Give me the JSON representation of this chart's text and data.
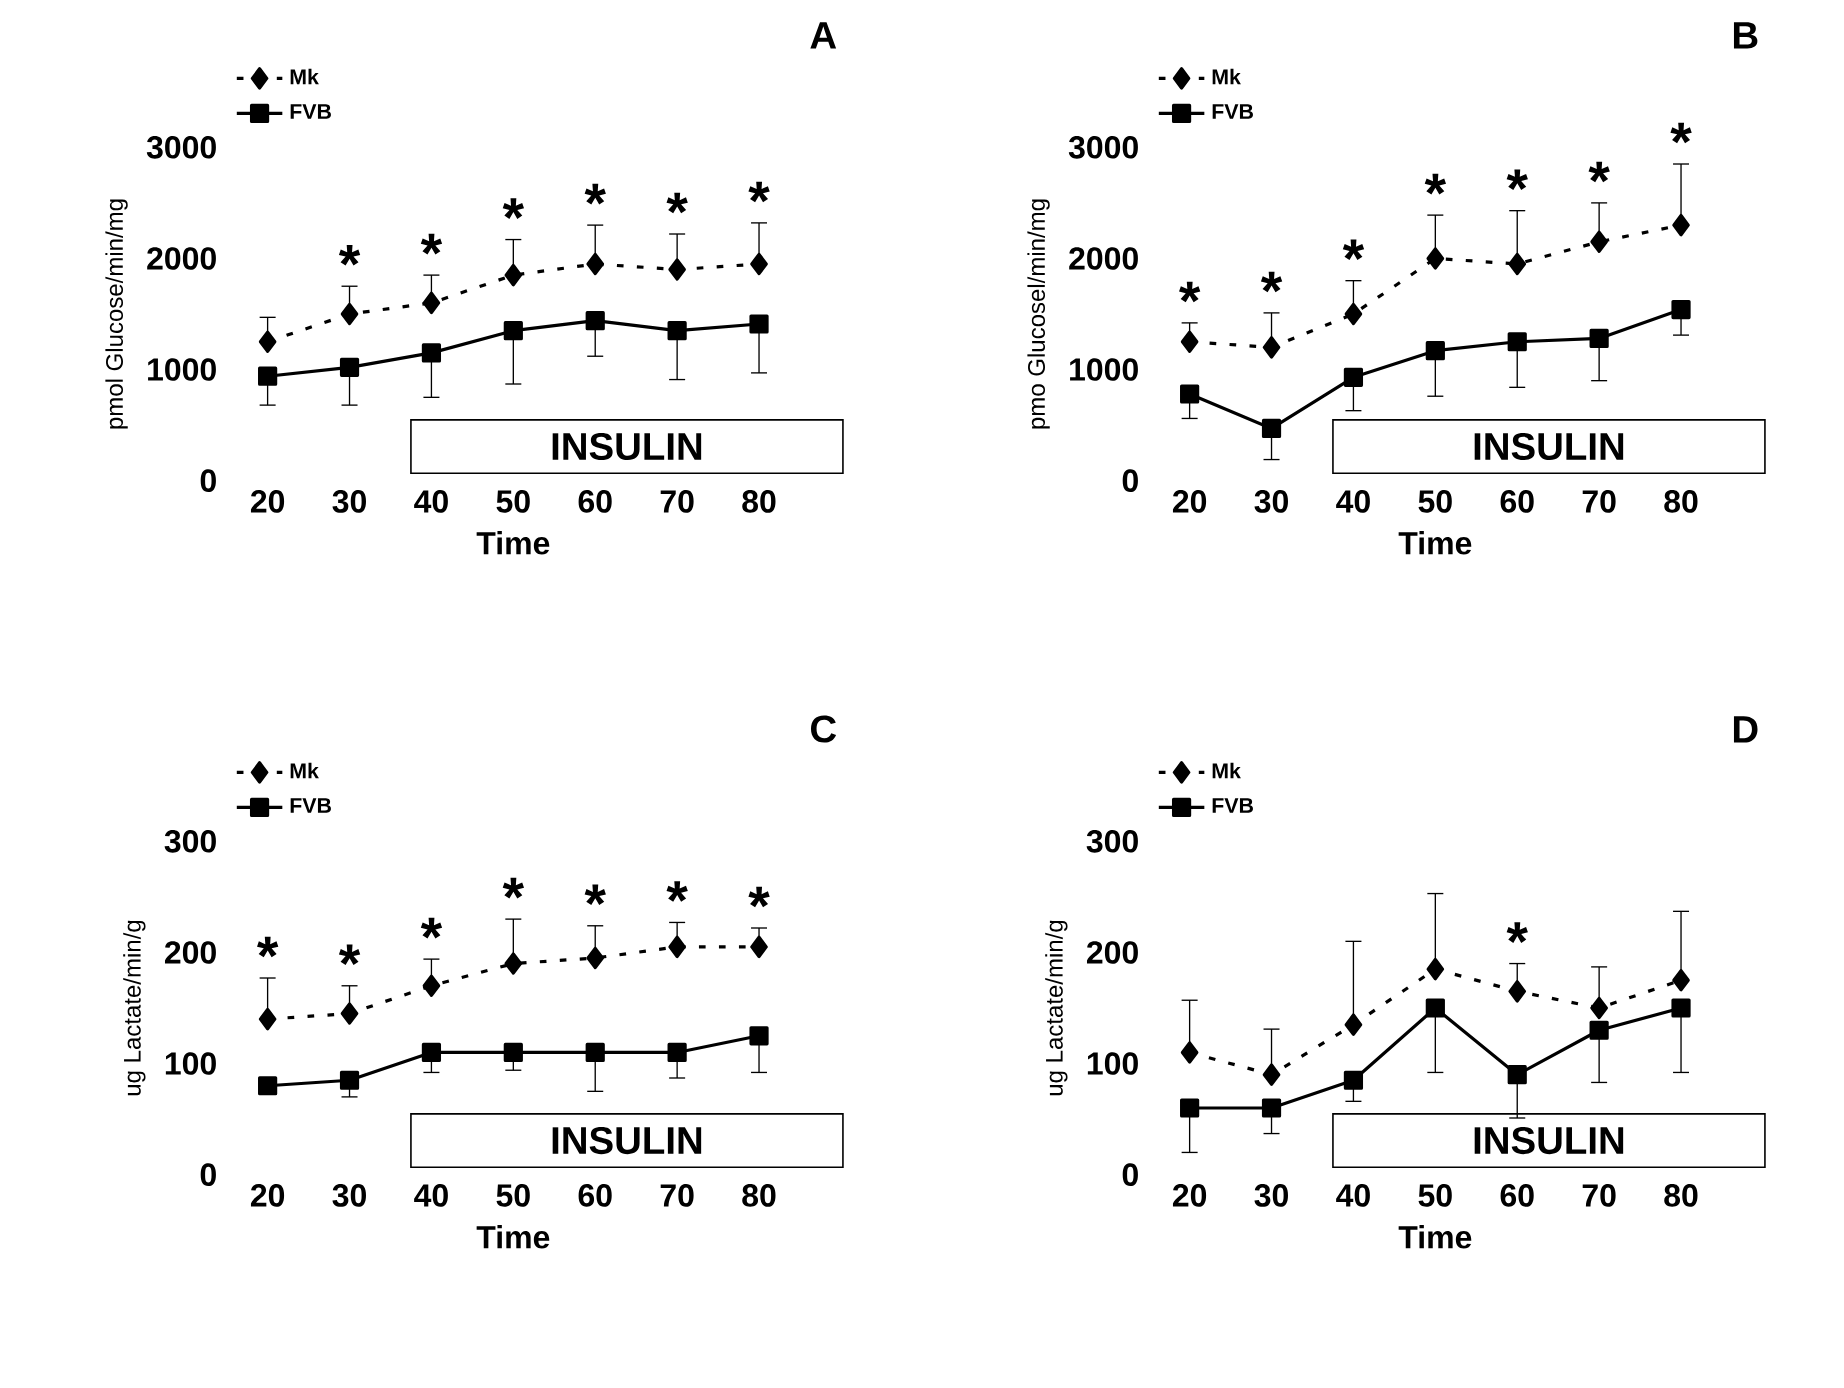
{
  "chart_data": [
    {
      "type": "line",
      "title": "A",
      "xlabel": "Time",
      "ylabel": "pmol Glucose/min/mg",
      "categories": [
        "20",
        "30",
        "40",
        "50",
        "60",
        "70",
        "80"
      ],
      "ylim": [
        0,
        3000
      ],
      "yticks": [
        0,
        1000,
        2000,
        3000
      ],
      "legend": "top left",
      "series": [
        {
          "name": "Mk",
          "color": "#000000",
          "marker": "diamond",
          "line_style": "dashed",
          "values": [
            1250,
            1500,
            1600,
            1850,
            1950,
            1900,
            1950
          ],
          "errors": [
            [
              1250,
              1470
            ],
            [
              1500,
              1750
            ],
            [
              1600,
              1850
            ],
            [
              1850,
              2170
            ],
            [
              1950,
              2300
            ],
            [
              1900,
              2220
            ],
            [
              1950,
              2320
            ]
          ]
        },
        {
          "name": "FVB",
          "color": "#000000",
          "marker": "square",
          "line_style": "solid",
          "values": [
            940,
            1020,
            1150,
            1350,
            1440,
            1350,
            1410
          ],
          "errors": [
            [
              680,
              940
            ],
            [
              680,
              1020
            ],
            [
              750,
              1150
            ],
            [
              870,
              1350
            ],
            [
              1120,
              1440
            ],
            [
              910,
              1350
            ],
            [
              970,
              1410
            ]
          ]
        }
      ],
      "annotations": [
        {
          "text": "*",
          "x": "30",
          "y": 1750
        },
        {
          "text": "*",
          "x": "40",
          "y": 1850
        },
        {
          "text": "*",
          "x": "50",
          "y": 2170
        },
        {
          "text": "*",
          "x": "60",
          "y": 2300
        },
        {
          "text": "*",
          "x": "70",
          "y": 2220
        },
        {
          "text": "*",
          "x": "80",
          "y": 2320
        },
        "INSULIN"
      ]
    },
    {
      "type": "line",
      "title": "B",
      "xlabel": "Time",
      "ylabel": "pmo Glucosel/min/mg",
      "categories": [
        "20",
        "30",
        "40",
        "50",
        "60",
        "70",
        "80"
      ],
      "ylim": [
        0,
        3000
      ],
      "yticks": [
        0,
        1000,
        2000,
        3000
      ],
      "legend": "top left",
      "series": [
        {
          "name": "Mk",
          "color": "#000000",
          "marker": "diamond",
          "line_style": "dashed",
          "values": [
            1250,
            1200,
            1500,
            2000,
            1950,
            2150,
            2300
          ],
          "errors": [
            [
              1250,
              1420
            ],
            [
              1200,
              1510
            ],
            [
              1500,
              1800
            ],
            [
              2000,
              2390
            ],
            [
              1950,
              2430
            ],
            [
              2150,
              2500
            ],
            [
              2300,
              2850
            ]
          ]
        },
        {
          "name": "FVB",
          "color": "#000000",
          "marker": "square",
          "line_style": "solid",
          "values": [
            780,
            470,
            930,
            1170,
            1250,
            1280,
            1540
          ],
          "errors": [
            [
              560,
              780
            ],
            [
              190,
              470
            ],
            [
              630,
              930
            ],
            [
              760,
              1170
            ],
            [
              840,
              1250
            ],
            [
              900,
              1280
            ],
            [
              1310,
              1540
            ]
          ]
        }
      ],
      "annotations": [
        {
          "text": "*",
          "x": "20",
          "y": 1420
        },
        {
          "text": "*",
          "x": "30",
          "y": 1510
        },
        {
          "text": "*",
          "x": "40",
          "y": 1800
        },
        {
          "text": "*",
          "x": "50",
          "y": 2390
        },
        {
          "text": "*",
          "x": "60",
          "y": 2430
        },
        {
          "text": "*",
          "x": "70",
          "y": 2500
        },
        {
          "text": "*",
          "x": "80",
          "y": 2850
        },
        "INSULIN"
      ]
    },
    {
      "type": "line",
      "title": "C",
      "xlabel": "Time",
      "ylabel": "ug Lactate/min/g",
      "categories": [
        "20",
        "30",
        "40",
        "50",
        "60",
        "70",
        "80"
      ],
      "ylim": [
        0,
        300
      ],
      "yticks": [
        0,
        100,
        200,
        300
      ],
      "legend": "top left",
      "series": [
        {
          "name": "Mk",
          "color": "#000000",
          "marker": "diamond",
          "line_style": "dashed",
          "values": [
            140,
            145,
            170,
            190,
            195,
            205,
            205
          ],
          "errors": [
            [
              140,
              177
            ],
            [
              145,
              170
            ],
            [
              170,
              194
            ],
            [
              190,
              230
            ],
            [
              195,
              224
            ],
            [
              205,
              227
            ],
            [
              205,
              222
            ]
          ]
        },
        {
          "name": "FVB",
          "color": "#000000",
          "marker": "square",
          "line_style": "solid",
          "values": [
            80,
            85,
            110,
            110,
            110,
            110,
            125
          ],
          "errors": [
            null,
            [
              70,
              85
            ],
            [
              92,
              110
            ],
            [
              94,
              110
            ],
            [
              75,
              110
            ],
            [
              87,
              110
            ],
            [
              92,
              125
            ]
          ]
        }
      ],
      "annotations": [
        {
          "text": "*",
          "x": "20",
          "y": 177
        },
        {
          "text": "*",
          "x": "30",
          "y": 170
        },
        {
          "text": "*",
          "x": "40",
          "y": 194
        },
        {
          "text": "*",
          "x": "50",
          "y": 230
        },
        {
          "text": "*",
          "x": "60",
          "y": 224
        },
        {
          "text": "*",
          "x": "70",
          "y": 227
        },
        {
          "text": "*",
          "x": "80",
          "y": 222
        },
        "INSULIN"
      ]
    },
    {
      "type": "line",
      "title": "D",
      "xlabel": "Time",
      "ylabel": "ug Lactate/min/g",
      "categories": [
        "20",
        "30",
        "40",
        "50",
        "60",
        "70",
        "80"
      ],
      "ylim": [
        0,
        300
      ],
      "yticks": [
        0,
        100,
        200,
        300
      ],
      "legend": "top left",
      "series": [
        {
          "name": "Mk",
          "color": "#000000",
          "marker": "diamond",
          "line_style": "dashed",
          "values": [
            110,
            90,
            135,
            185,
            165,
            150,
            175
          ],
          "errors": [
            [
              110,
              157
            ],
            [
              90,
              131
            ],
            [
              135,
              210
            ],
            [
              185,
              253
            ],
            [
              165,
              190
            ],
            [
              150,
              187
            ],
            [
              175,
              237
            ]
          ]
        },
        {
          "name": "FVB",
          "color": "#000000",
          "marker": "square",
          "line_style": "solid",
          "values": [
            60,
            60,
            85,
            150,
            90,
            130,
            150
          ],
          "errors": [
            [
              20,
              60
            ],
            [
              37,
              60
            ],
            [
              66,
              85
            ],
            [
              92,
              150
            ],
            [
              51,
              90
            ],
            [
              83,
              130
            ],
            [
              92,
              150
            ]
          ]
        }
      ],
      "annotations": [
        {
          "text": "*",
          "x": "60",
          "y": 190
        },
        "INSULIN"
      ]
    }
  ]
}
